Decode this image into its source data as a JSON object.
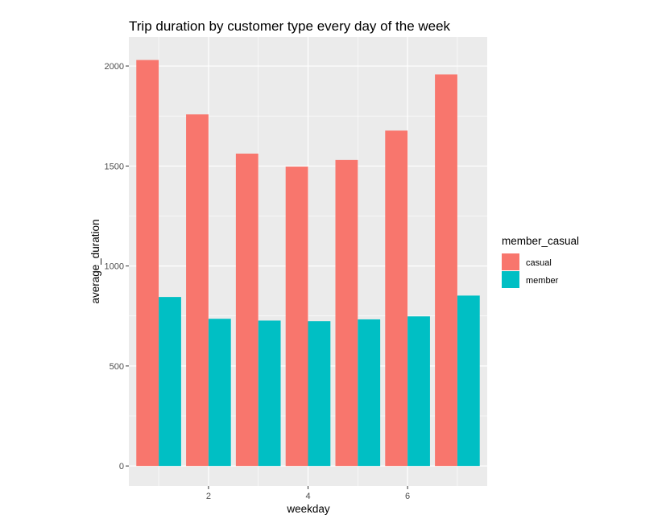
{
  "colors": {
    "panel_background": "#EBEBEB",
    "gridline": "#FFFFFF",
    "casual": "#F8766D",
    "member": "#00BFC4"
  },
  "chart_data": {
    "type": "bar",
    "title": "Trip duration by customer type every day of the week",
    "xlabel": "weekday",
    "ylabel": "average_duration",
    "x": [
      1,
      2,
      3,
      4,
      5,
      6,
      7
    ],
    "x_tick_labels": [
      "2",
      "4",
      "6"
    ],
    "y_tick_labels": [
      "0",
      "500",
      "1000",
      "1500",
      "2000"
    ],
    "xlim": [
      0.4,
      7.6
    ],
    "ylim": [
      -100,
      2145
    ],
    "grid": true,
    "legend": {
      "title": "member_casual",
      "placement": "right"
    },
    "series": [
      {
        "name": "casual",
        "color": "#F8766D",
        "values": [
          2030,
          1758,
          1562,
          1497,
          1530,
          1677,
          1958
        ]
      },
      {
        "name": "member",
        "color": "#00BFC4",
        "values": [
          845,
          736,
          727,
          724,
          733,
          748,
          852
        ]
      }
    ]
  }
}
